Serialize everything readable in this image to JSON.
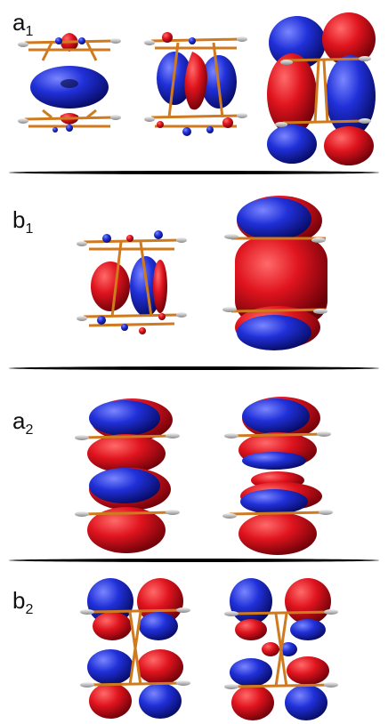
{
  "panels": [
    {
      "symbol": "a",
      "subscript": "1"
    },
    {
      "symbol": "b",
      "subscript": "1"
    },
    {
      "symbol": "a",
      "subscript": "2"
    },
    {
      "symbol": "b",
      "subscript": "2"
    }
  ],
  "colors": {
    "positive_lobe": "#d6121e",
    "negative_lobe": "#1e2ec8",
    "bond": "#d07a1e",
    "hydrogen": "#c8c8c8",
    "divider": "#000000"
  }
}
